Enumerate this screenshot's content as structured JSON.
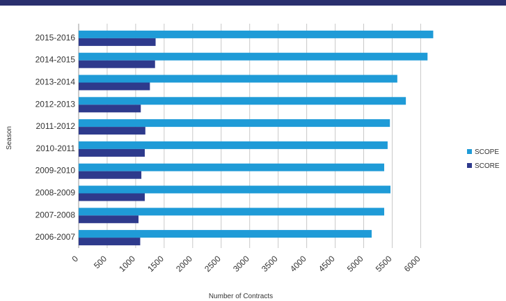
{
  "chart_data": {
    "type": "bar",
    "orientation": "horizontal",
    "categories": [
      "2015-2016",
      "2014-2015",
      "2013-2014",
      "2012-2013",
      "2011-2012",
      "2010-2011",
      "2009-2010",
      "2008-2009",
      "2007-2008",
      "2006-2007"
    ],
    "series": [
      {
        "name": "SCOPE",
        "values": [
          6220,
          6120,
          5590,
          5740,
          5460,
          5420,
          5360,
          5470,
          5360,
          5140
        ],
        "color": "#1f9bd7"
      },
      {
        "name": "SCORE",
        "values": [
          1350,
          1340,
          1250,
          1090,
          1170,
          1160,
          1100,
          1160,
          1050,
          1080
        ],
        "color": "#2e3a8c"
      }
    ],
    "title": "",
    "xlabel": "Number of Contracts",
    "ylabel": "Season",
    "xlim": [
      0,
      6300
    ],
    "xticks": [
      "0",
      "500",
      "1000",
      "1500",
      "2000",
      "2500",
      "3000",
      "3500",
      "4000",
      "4500",
      "5000",
      "5500",
      "6000"
    ],
    "grid": "vertical",
    "legend_position": "right"
  }
}
